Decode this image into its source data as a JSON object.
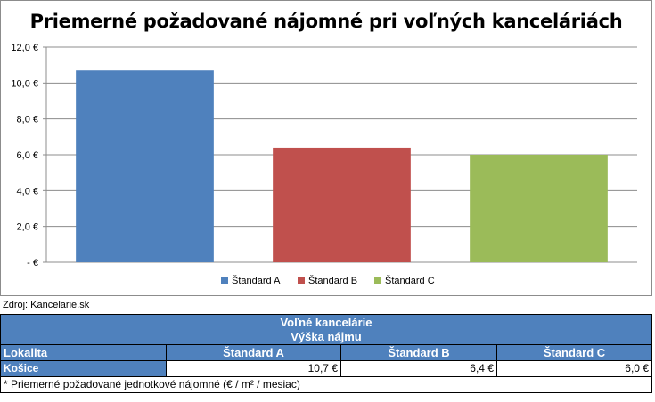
{
  "chart_data": {
    "type": "bar",
    "title": "Priemerné požadované nájomné pri voľných kanceláriách",
    "categories": [
      "Štandard A",
      "Štandard B",
      "Štandard C"
    ],
    "values": [
      10.7,
      6.4,
      6.0
    ],
    "colors": [
      "#4f81bd",
      "#c0504d",
      "#9bbb59"
    ],
    "ylim": [
      0,
      12
    ],
    "yticks": [
      0,
      2,
      4,
      6,
      8,
      10,
      12
    ],
    "ytick_labels": [
      "-  €",
      "2,0 €",
      "4,0 €",
      "6,0 €",
      "8,0 €",
      "10,0 €",
      "12,0 €"
    ],
    "xlabel": "",
    "ylabel": "",
    "grid": true,
    "legend_position": "bottom",
    "legend": [
      "Štandard A",
      "Štandard B",
      "Štandard C"
    ]
  },
  "source_note": "Zdroj: Kancelarie.sk",
  "table": {
    "title_line1": "Voľné kancelárie",
    "title_line2": "Výška nájmu",
    "col_lokalita": "Lokalita",
    "col_a": "Štandard A",
    "col_b": "Štandard B",
    "col_c": "Štandard C",
    "row_label": "Košice",
    "row_a": "10,7 €",
    "row_b": "6,4 €",
    "row_c": "6,0 €",
    "footnote": "* Priemerné požadované jednotkové nájomné (€ / m² / mesiac)"
  }
}
